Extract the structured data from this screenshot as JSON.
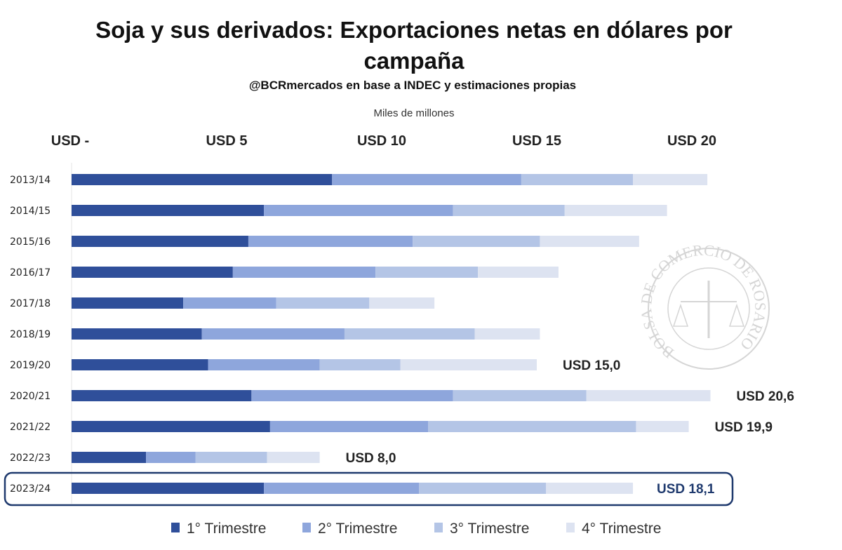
{
  "chart_data": {
    "type": "bar",
    "orientation": "horizontal",
    "stacked": true,
    "title": "Soja y sus derivados: Exportaciones netas en dólares por campaña",
    "title_lines": [
      "Soja y sus derivados: Exportaciones netas en dólares por",
      "campaña"
    ],
    "subtitle": "@BCRmercados en base a INDEC y estimaciones propias",
    "unit_label": "Miles de millones",
    "xlim": [
      0,
      20.8
    ],
    "xticks": [
      0,
      5,
      10,
      15,
      20
    ],
    "xtick_labels": [
      "USD -",
      "USD 5",
      "USD 10",
      "USD 15",
      "USD 20"
    ],
    "categories": [
      "2013/14",
      "2014/15",
      "2015/16",
      "2016/17",
      "2017/18",
      "2018/19",
      "2019/20",
      "2020/21",
      "2021/22",
      "2022/23",
      "2023/24"
    ],
    "series": [
      {
        "name": "1° Trimestre",
        "color": "#2F4F9A",
        "values": [
          8.4,
          6.2,
          5.7,
          5.2,
          3.6,
          4.2,
          4.4,
          5.8,
          6.4,
          2.4,
          6.2
        ]
      },
      {
        "name": "2° Trimestre",
        "color": "#8EA6DC",
        "values": [
          6.1,
          6.1,
          5.3,
          4.6,
          3.0,
          4.6,
          3.6,
          6.5,
          5.1,
          1.6,
          5.0
        ]
      },
      {
        "name": "3° Trimestre",
        "color": "#B4C5E6",
        "values": [
          3.6,
          3.6,
          4.1,
          3.3,
          3.0,
          4.2,
          2.6,
          4.3,
          6.7,
          2.3,
          4.1
        ]
      },
      {
        "name": "4° Trimestre",
        "color": "#DDE3F1",
        "values": [
          2.4,
          3.3,
          3.2,
          2.6,
          2.1,
          2.1,
          4.4,
          4.0,
          1.7,
          1.7,
          2.8
        ]
      }
    ],
    "total_labels": [
      null,
      null,
      null,
      null,
      null,
      null,
      "USD 15,0",
      "USD 20,6",
      "USD 19,9",
      "USD 8,0",
      "USD 18,1"
    ],
    "highlighted_category": "2023/24",
    "highlight_color": "#1F3A6E",
    "legend_position": "bottom",
    "grid": false,
    "watermark": "BOLSA DE COMERCIO DE ROSARIO"
  }
}
